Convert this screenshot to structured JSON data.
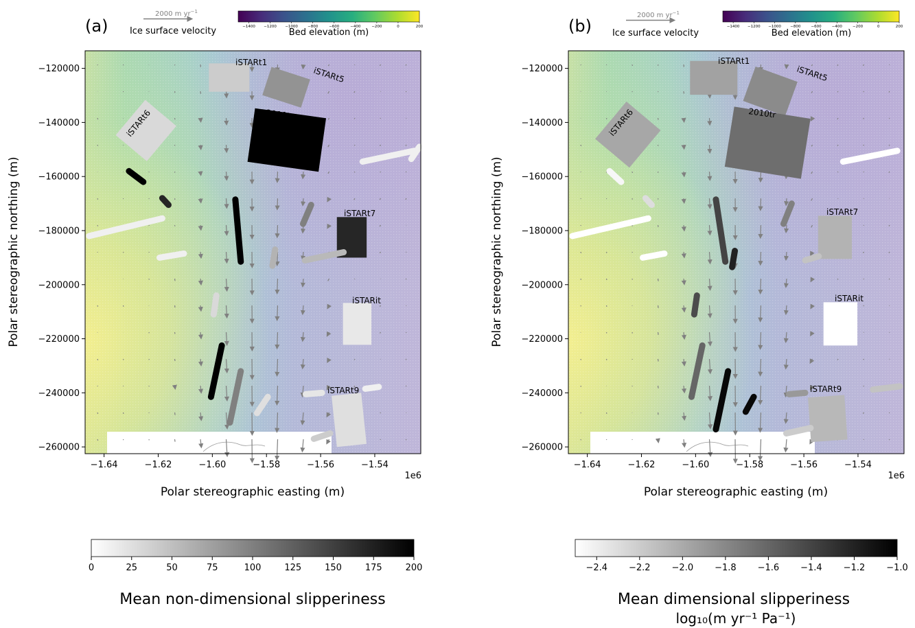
{
  "figure": {
    "colors": {
      "bed_low": "#440154",
      "bed_mid1": "#3b528b",
      "bed_mid2": "#21918c",
      "bed_mid3": "#5ec962",
      "bed_high": "#fde725",
      "arrow": "#808080",
      "mask": "#ffffff"
    }
  },
  "chart_data": [
    {
      "type": "heatmap",
      "panel_label": "(a)",
      "velocity_legend": {
        "scale_label": "2000 m yr",
        "scale_exp": "−1",
        "title": "Ice surface velocity"
      },
      "bed_colorbar": {
        "title": "Bed elevation (m)",
        "ticks": [
          "−1400",
          "−1200",
          "−1000",
          "−800",
          "−600",
          "−400",
          "−200",
          "0",
          "200"
        ],
        "range": [
          -1500,
          200
        ]
      },
      "xlabel": "Polar stereographic easting (m)",
      "ylabel": "Polar stereographic northing (m)",
      "x_ticks": [
        "−1.64",
        "−1.62",
        "−1.60",
        "−1.58",
        "−1.56",
        "−1.54"
      ],
      "x_multiplier": "1e6",
      "y_ticks": [
        "−120000",
        "−140000",
        "−160000",
        "−180000",
        "−200000",
        "−220000",
        "−240000",
        "−260000"
      ],
      "xlim": [
        -1.647,
        -1.523
      ],
      "ylim": [
        -262500,
        -113500
      ],
      "slip_colorbar": {
        "title": "Mean non-dimensional slipperiness",
        "title2": "",
        "ticks": [
          "0",
          "25",
          "50",
          "75",
          "100",
          "125",
          "150",
          "175",
          "200"
        ],
        "range": [
          0,
          200
        ]
      },
      "survey_labels": [
        {
          "text": "iSTARt1",
          "rot": 0
        },
        {
          "text": "iSTARt5",
          "rot": 18
        },
        {
          "text": "2010tr",
          "rot": 8
        },
        {
          "text": "iSTARt6",
          "rot": -50
        },
        {
          "text": "iSTARt7",
          "rot": 0
        },
        {
          "text": "iSTARit",
          "rot": 0
        },
        {
          "text": "iSTARt9",
          "rot": 0
        }
      ],
      "surveys": [
        {
          "name": "iSTARt1",
          "cx": -1.5938,
          "cy": -123400,
          "w": 0.015,
          "h": 10500,
          "rot": 0,
          "value": 40
        },
        {
          "name": "iSTARt5",
          "cx": -1.5727,
          "cy": -127000,
          "w": 0.015,
          "h": 11000,
          "rot": 18,
          "value": 85
        },
        {
          "name": "2010tr",
          "cx": -1.5725,
          "cy": -146500,
          "w": 0.0265,
          "h": 20000,
          "rot": 8,
          "value": 200
        },
        {
          "name": "iSTARt6",
          "cx": -1.6245,
          "cy": -143000,
          "w": 0.015,
          "h": 17000,
          "rot": 40,
          "value": 30
        },
        {
          "name": "iSTARt7",
          "cx": -1.5485,
          "cy": -182500,
          "w": 0.011,
          "h": 15000,
          "rot": 0,
          "value": 170
        },
        {
          "name": "iSTARit",
          "cx": -1.5465,
          "cy": -214500,
          "w": 0.0105,
          "h": 15500,
          "rot": 0,
          "value": 18
        },
        {
          "name": "iSTARt9",
          "cx": -1.5495,
          "cy": -250000,
          "w": 0.011,
          "h": 19000,
          "rot": -6,
          "value": 25
        }
      ],
      "tracks": [
        {
          "x1": -1.6308,
          "y1": -158000,
          "x2": -1.6255,
          "y2": -162000,
          "value": 200
        },
        {
          "x1": -1.6185,
          "y1": -168000,
          "x2": -1.6162,
          "y2": -170500,
          "value": 170
        },
        {
          "x1": -1.6455,
          "y1": -182000,
          "x2": -1.6185,
          "y2": -175500,
          "value": 12
        },
        {
          "x1": -1.6195,
          "y1": -190000,
          "x2": -1.6105,
          "y2": -188500,
          "value": 12
        },
        {
          "x1": -1.5265,
          "y1": -153500,
          "x2": -1.5235,
          "y2": -149000,
          "value": 12
        },
        {
          "x1": -1.5445,
          "y1": -154500,
          "x2": -1.5255,
          "y2": -150500,
          "value": 12
        },
        {
          "x1": -1.5915,
          "y1": -168500,
          "x2": -1.5895,
          "y2": -191500,
          "value": 200
        },
        {
          "x1": -1.5665,
          "y1": -177500,
          "x2": -1.5635,
          "y2": -170500,
          "value": 100
        },
        {
          "x1": -1.5778,
          "y1": -193000,
          "x2": -1.5768,
          "y2": -187000,
          "value": 60
        },
        {
          "x1": -1.5658,
          "y1": -191000,
          "x2": -1.5515,
          "y2": -188000,
          "value": 55
        },
        {
          "x1": -1.5995,
          "y1": -211000,
          "x2": -1.5985,
          "y2": -204000,
          "value": 30
        },
        {
          "x1": -1.6005,
          "y1": -241500,
          "x2": -1.5965,
          "y2": -222500,
          "value": 200
        },
        {
          "x1": -1.5935,
          "y1": -251000,
          "x2": -1.5895,
          "y2": -232000,
          "value": 100
        },
        {
          "x1": -1.5835,
          "y1": -247500,
          "x2": -1.5795,
          "y2": -241500,
          "value": 25
        },
        {
          "x1": -1.5655,
          "y1": -240500,
          "x2": -1.5595,
          "y2": -240000,
          "value": 20
        },
        {
          "x1": -1.5435,
          "y1": -238500,
          "x2": -1.5385,
          "y2": -237800,
          "value": 12
        },
        {
          "x1": -1.5625,
          "y1": -257000,
          "x2": -1.5565,
          "y2": -255000,
          "value": 40
        }
      ]
    },
    {
      "type": "heatmap",
      "panel_label": "(b)",
      "velocity_legend": {
        "scale_label": "2000 m yr",
        "scale_exp": "−1",
        "title": "Ice surface velocity"
      },
      "bed_colorbar": {
        "title": "Bed elevation (m)",
        "ticks": [
          "−1400",
          "−1200",
          "−1000",
          "−800",
          "−600",
          "−400",
          "−200",
          "0",
          "200"
        ],
        "range": [
          -1500,
          200
        ]
      },
      "xlabel": "Polar stereographic easting (m)",
      "ylabel": "Polar stereographic northing (m)",
      "x_ticks": [
        "−1.64",
        "−1.62",
        "−1.60",
        "−1.58",
        "−1.56",
        "−1.54"
      ],
      "x_multiplier": "1e6",
      "y_ticks": [
        "−120000",
        "−140000",
        "−160000",
        "−180000",
        "−200000",
        "−220000",
        "−240000",
        "−260000"
      ],
      "xlim": [
        -1.647,
        -1.523
      ],
      "ylim": [
        -262500,
        -113500
      ],
      "slip_colorbar": {
        "title": "Mean dimensional slipperiness",
        "title2": "log₁₀(m yr⁻¹ Pa⁻¹)",
        "ticks": [
          "−2.4",
          "−2.2",
          "−2.0",
          "−1.8",
          "−1.6",
          "−1.4",
          "−1.2",
          "−1.0"
        ],
        "range": [
          -2.5,
          -1.0
        ]
      },
      "survey_labels": [
        {
          "text": "iSTARt1",
          "rot": 0
        },
        {
          "text": "iSTARt5",
          "rot": 18
        },
        {
          "text": "2010tr",
          "rot": 8
        },
        {
          "text": "iSTARt6",
          "rot": -50
        },
        {
          "text": "iSTARt7",
          "rot": 0
        },
        {
          "text": "iSTARit",
          "rot": 0
        },
        {
          "text": "iSTARt9",
          "rot": 0
        }
      ],
      "surveys": [
        {
          "name": "iSTARt1",
          "cx": -1.5933,
          "cy": -123500,
          "w": 0.0175,
          "h": 12500,
          "rot": 0,
          "value": -1.95
        },
        {
          "name": "iSTARt5",
          "cx": -1.5724,
          "cy": -128500,
          "w": 0.0165,
          "h": 13500,
          "rot": 20,
          "value": -1.82
        },
        {
          "name": "2010tr",
          "cx": -1.5734,
          "cy": -147500,
          "w": 0.0285,
          "h": 22500,
          "rot": 9,
          "value": -1.65
        },
        {
          "name": "iSTARt6",
          "cx": -1.625,
          "cy": -144500,
          "w": 0.0165,
          "h": 18000,
          "rot": 40,
          "value": -1.98
        },
        {
          "name": "iSTARt7",
          "cx": -1.5485,
          "cy": -182500,
          "w": 0.0125,
          "h": 16000,
          "rot": 0,
          "value": -2.05
        },
        {
          "name": "iSTARit",
          "cx": -1.5465,
          "cy": -214500,
          "w": 0.0125,
          "h": 16000,
          "rot": 0,
          "value": -2.5
        },
        {
          "name": "iSTARt9",
          "cx": -1.5512,
          "cy": -249500,
          "w": 0.0135,
          "h": 16500,
          "rot": -4,
          "value": -2.08
        }
      ],
      "tracks": [
        {
          "x1": -1.6318,
          "y1": -158000,
          "x2": -1.6275,
          "y2": -162000,
          "value": -2.45
        },
        {
          "x1": -1.6185,
          "y1": -168000,
          "x2": -1.6162,
          "y2": -170500,
          "value": -2.3
        },
        {
          "x1": -1.6455,
          "y1": -182000,
          "x2": -1.6175,
          "y2": -175500,
          "value": -2.5
        },
        {
          "x1": -1.6195,
          "y1": -190000,
          "x2": -1.6115,
          "y2": -188500,
          "value": -2.5
        },
        {
          "x1": -1.5455,
          "y1": -154500,
          "x2": -1.5255,
          "y2": -150500,
          "value": -2.5
        },
        {
          "x1": -1.5925,
          "y1": -168500,
          "x2": -1.589,
          "y2": -191500,
          "value": -1.4
        },
        {
          "x1": -1.5675,
          "y1": -177500,
          "x2": -1.5645,
          "y2": -170000,
          "value": -1.75
        },
        {
          "x1": -1.5865,
          "y1": -193500,
          "x2": -1.5855,
          "y2": -187500,
          "value": -1.2
        },
        {
          "x1": -1.5595,
          "y1": -191000,
          "x2": -1.5545,
          "y2": -189500,
          "value": -2.15
        },
        {
          "x1": -1.6005,
          "y1": -211000,
          "x2": -1.5995,
          "y2": -204000,
          "value": -1.45
        },
        {
          "x1": -1.6015,
          "y1": -241500,
          "x2": -1.5975,
          "y2": -222500,
          "value": -1.6
        },
        {
          "x1": -1.5925,
          "y1": -253500,
          "x2": -1.588,
          "y2": -232000,
          "value": -1.05
        },
        {
          "x1": -1.5815,
          "y1": -247000,
          "x2": -1.5785,
          "y2": -241500,
          "value": -1.05
        },
        {
          "x1": -1.5655,
          "y1": -240500,
          "x2": -1.5595,
          "y2": -240000,
          "value": -1.9
        },
        {
          "x1": -1.5345,
          "y1": -238800,
          "x2": -1.5245,
          "y2": -237600,
          "value": -2.15
        },
        {
          "x1": -1.5665,
          "y1": -255000,
          "x2": -1.5575,
          "y2": -253000,
          "value": -2.2
        }
      ]
    }
  ]
}
